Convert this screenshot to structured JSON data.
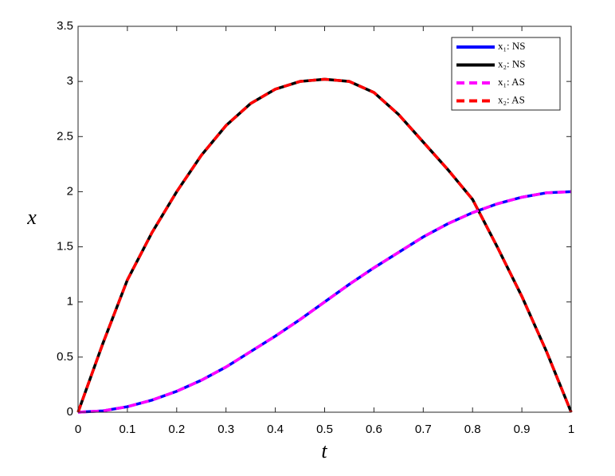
{
  "chart_data": {
    "type": "line",
    "xlabel": "t",
    "ylabel": "x",
    "x": [
      0,
      0.05,
      0.1,
      0.15,
      0.2,
      0.25,
      0.3,
      0.35,
      0.4,
      0.45,
      0.5,
      0.55,
      0.6,
      0.65,
      0.7,
      0.75,
      0.8,
      0.85,
      0.9,
      0.95,
      1
    ],
    "series": [
      {
        "name": "x₁: NS",
        "color": "#0000ff",
        "linestyle": "solid",
        "values": [
          0,
          0.012,
          0.05,
          0.11,
          0.19,
          0.29,
          0.41,
          0.55,
          0.69,
          0.84,
          1,
          1.16,
          1.31,
          1.45,
          1.59,
          1.71,
          1.81,
          1.89,
          1.95,
          1.99,
          2
        ]
      },
      {
        "name": "x₂: NS",
        "color": "#000000",
        "linestyle": "solid",
        "values": [
          0,
          0.62,
          1.2,
          1.63,
          2.0,
          2.33,
          2.6,
          2.8,
          2.93,
          3.0,
          3.02,
          3.0,
          2.9,
          2.7,
          2.45,
          2.2,
          1.93,
          1.5,
          1.05,
          0.55,
          0
        ]
      },
      {
        "name": "x₁: AS",
        "color": "#ff00ff",
        "linestyle": "dashed",
        "values": [
          0,
          0.012,
          0.05,
          0.11,
          0.19,
          0.29,
          0.41,
          0.55,
          0.69,
          0.84,
          1,
          1.16,
          1.31,
          1.45,
          1.59,
          1.71,
          1.81,
          1.89,
          1.95,
          1.99,
          2
        ]
      },
      {
        "name": "x₂: AS",
        "color": "#ff0000",
        "linestyle": "dashed",
        "values": [
          0,
          0.62,
          1.2,
          1.63,
          2.0,
          2.33,
          2.6,
          2.8,
          2.93,
          3.0,
          3.02,
          3.0,
          2.9,
          2.7,
          2.45,
          2.2,
          1.93,
          1.5,
          1.05,
          0.55,
          0
        ]
      }
    ],
    "xlim": [
      0,
      1
    ],
    "xticks": [
      0,
      0.1,
      0.2,
      0.3,
      0.4,
      0.5,
      0.6,
      0.7,
      0.8,
      0.9,
      1
    ],
    "ylim": [
      0,
      3.5
    ],
    "yticks": [
      0,
      0.5,
      1,
      1.5,
      2,
      2.5,
      3,
      3.5
    ],
    "grid": false,
    "legend": "upper right"
  }
}
